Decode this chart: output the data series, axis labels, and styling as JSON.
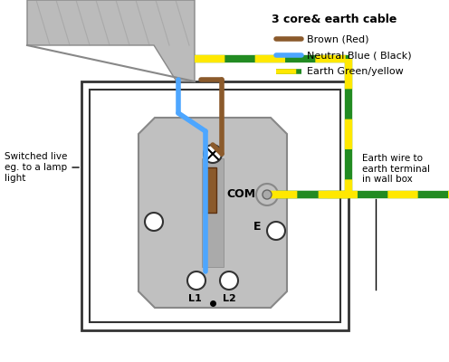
{
  "title": "3 core& earth cable",
  "legend_items": [
    {
      "label": "Brown (Red)",
      "color": "#8B5A2B"
    },
    {
      "label": "Neutral Blue ( Black)",
      "color": "#4DA6FF"
    },
    {
      "label": "Earth Green/yellow",
      "color": "#228B22"
    }
  ],
  "left_label_lines": [
    "Switched live",
    "eg. to a lamp",
    "light"
  ],
  "right_label_lines": [
    "Earth wire to",
    "earth terminal",
    "in wall box"
  ],
  "com_label": "COM",
  "e_label": "E",
  "l1_label": "L1",
  "l2_label": "L2",
  "bg_color": "#FFFFFF",
  "switch_plate_color": "#C0C0C0",
  "brown_wire": "#8B5A2B",
  "blue_wire": "#4DA6FF",
  "earth_green": "#228B22",
  "earth_yellow": "#FFE800"
}
